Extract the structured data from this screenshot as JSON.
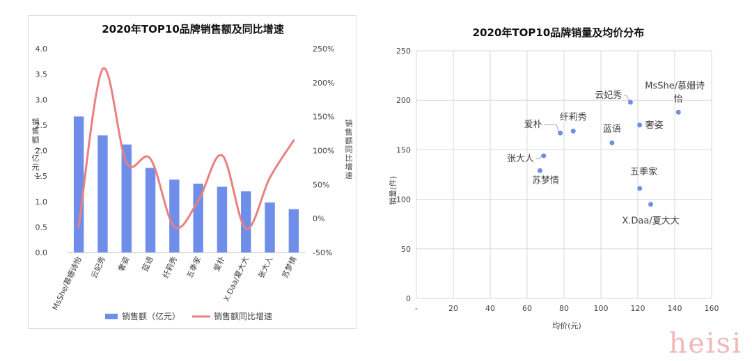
{
  "watermark": "heisi",
  "chart_data": [
    {
      "type": "bar",
      "title": "2020年TOP10品牌销售额及同比增速",
      "ylabel": "销售额（亿元）",
      "y2label": "销售额同比增速",
      "categories": [
        "MsShe/慕姗诗怡",
        "云妃秀",
        "奢姿",
        "蓝语",
        "纤莉秀",
        "五季家",
        "爱朴",
        "X.Daa/夏大大",
        "张大人",
        "苏梦情"
      ],
      "ylim": [
        0,
        4.0
      ],
      "yticks": [
        "0.0",
        "0.5",
        "1.0",
        "1.5",
        "2.0",
        "2.5",
        "3.0",
        "3.5",
        "4.0"
      ],
      "y2lim": [
        -50,
        250
      ],
      "y2ticks": [
        "-50%",
        "0%",
        "50%",
        "100%",
        "150%",
        "200%",
        "250%"
      ],
      "legend_position": "bottom",
      "series": [
        {
          "name": "销售额（亿元）",
          "kind": "bar",
          "axis": "left",
          "color": "#6E8EEA",
          "values": [
            2.67,
            2.3,
            2.12,
            1.66,
            1.43,
            1.35,
            1.29,
            1.2,
            0.98,
            0.85
          ]
        },
        {
          "name": "销售额同比增速",
          "kind": "line",
          "axis": "right",
          "color": "#E98080",
          "values": [
            -12,
            220,
            82,
            88,
            -12,
            26,
            93,
            -15,
            60,
            115
          ]
        }
      ]
    },
    {
      "type": "scatter",
      "title": "2020年TOP10品牌销量及均价分布",
      "xlabel": "均价(元)",
      "ylabel": "销量(件)",
      "xlim": [
        0,
        160
      ],
      "xticks": [
        "-",
        "20",
        "40",
        "60",
        "80",
        "100",
        "120",
        "140",
        "160"
      ],
      "ylim": [
        0,
        250
      ],
      "yticks": [
        "0",
        "50",
        "100",
        "150",
        "200",
        "250"
      ],
      "color": "#6E8EEA",
      "points": [
        {
          "label": "MsShe/慕姗诗怡",
          "x": 142,
          "y": 188
        },
        {
          "label": "云妃秀",
          "x": 116,
          "y": 198
        },
        {
          "label": "奢姿",
          "x": 121,
          "y": 175
        },
        {
          "label": "蓝语",
          "x": 106,
          "y": 157
        },
        {
          "label": "纤莉秀",
          "x": 85,
          "y": 169
        },
        {
          "label": "爱朴",
          "x": 78,
          "y": 167
        },
        {
          "label": "张大人",
          "x": 69,
          "y": 144
        },
        {
          "label": "苏梦情",
          "x": 67,
          "y": 129
        },
        {
          "label": "五季家",
          "x": 121,
          "y": 111
        },
        {
          "label": "X.Daa/夏大大",
          "x": 127,
          "y": 95
        }
      ]
    }
  ]
}
